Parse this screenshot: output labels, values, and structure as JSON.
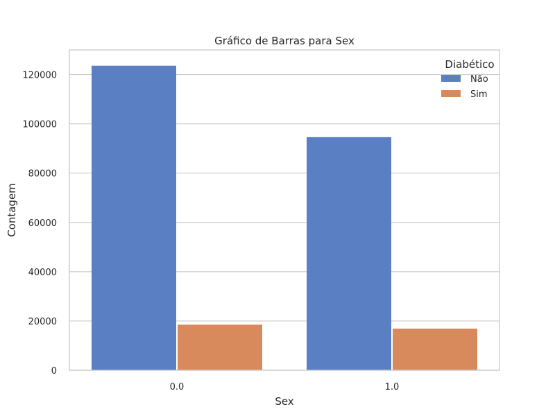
{
  "chart_data": {
    "type": "bar",
    "title": "Gráfico de Barras para Sex",
    "xlabel": "Sex",
    "ylabel": "Contagem",
    "categories": [
      "0.0",
      "1.0"
    ],
    "series": [
      {
        "name": "Não",
        "values": [
          123600,
          94600
        ],
        "color": "#5a7fc2"
      },
      {
        "name": "Sim",
        "values": [
          18500,
          16900
        ],
        "color": "#d98a5c"
      }
    ],
    "ylim": [
      0,
      130000
    ],
    "yticks": [
      0,
      20000,
      40000,
      60000,
      80000,
      100000,
      120000
    ],
    "ytick_labels": [
      "0",
      "20000",
      "40000",
      "60000",
      "80000",
      "100000",
      "120000"
    ],
    "grid": "horizontal",
    "legend": {
      "title": "Diabético",
      "placement": "top-right"
    }
  }
}
